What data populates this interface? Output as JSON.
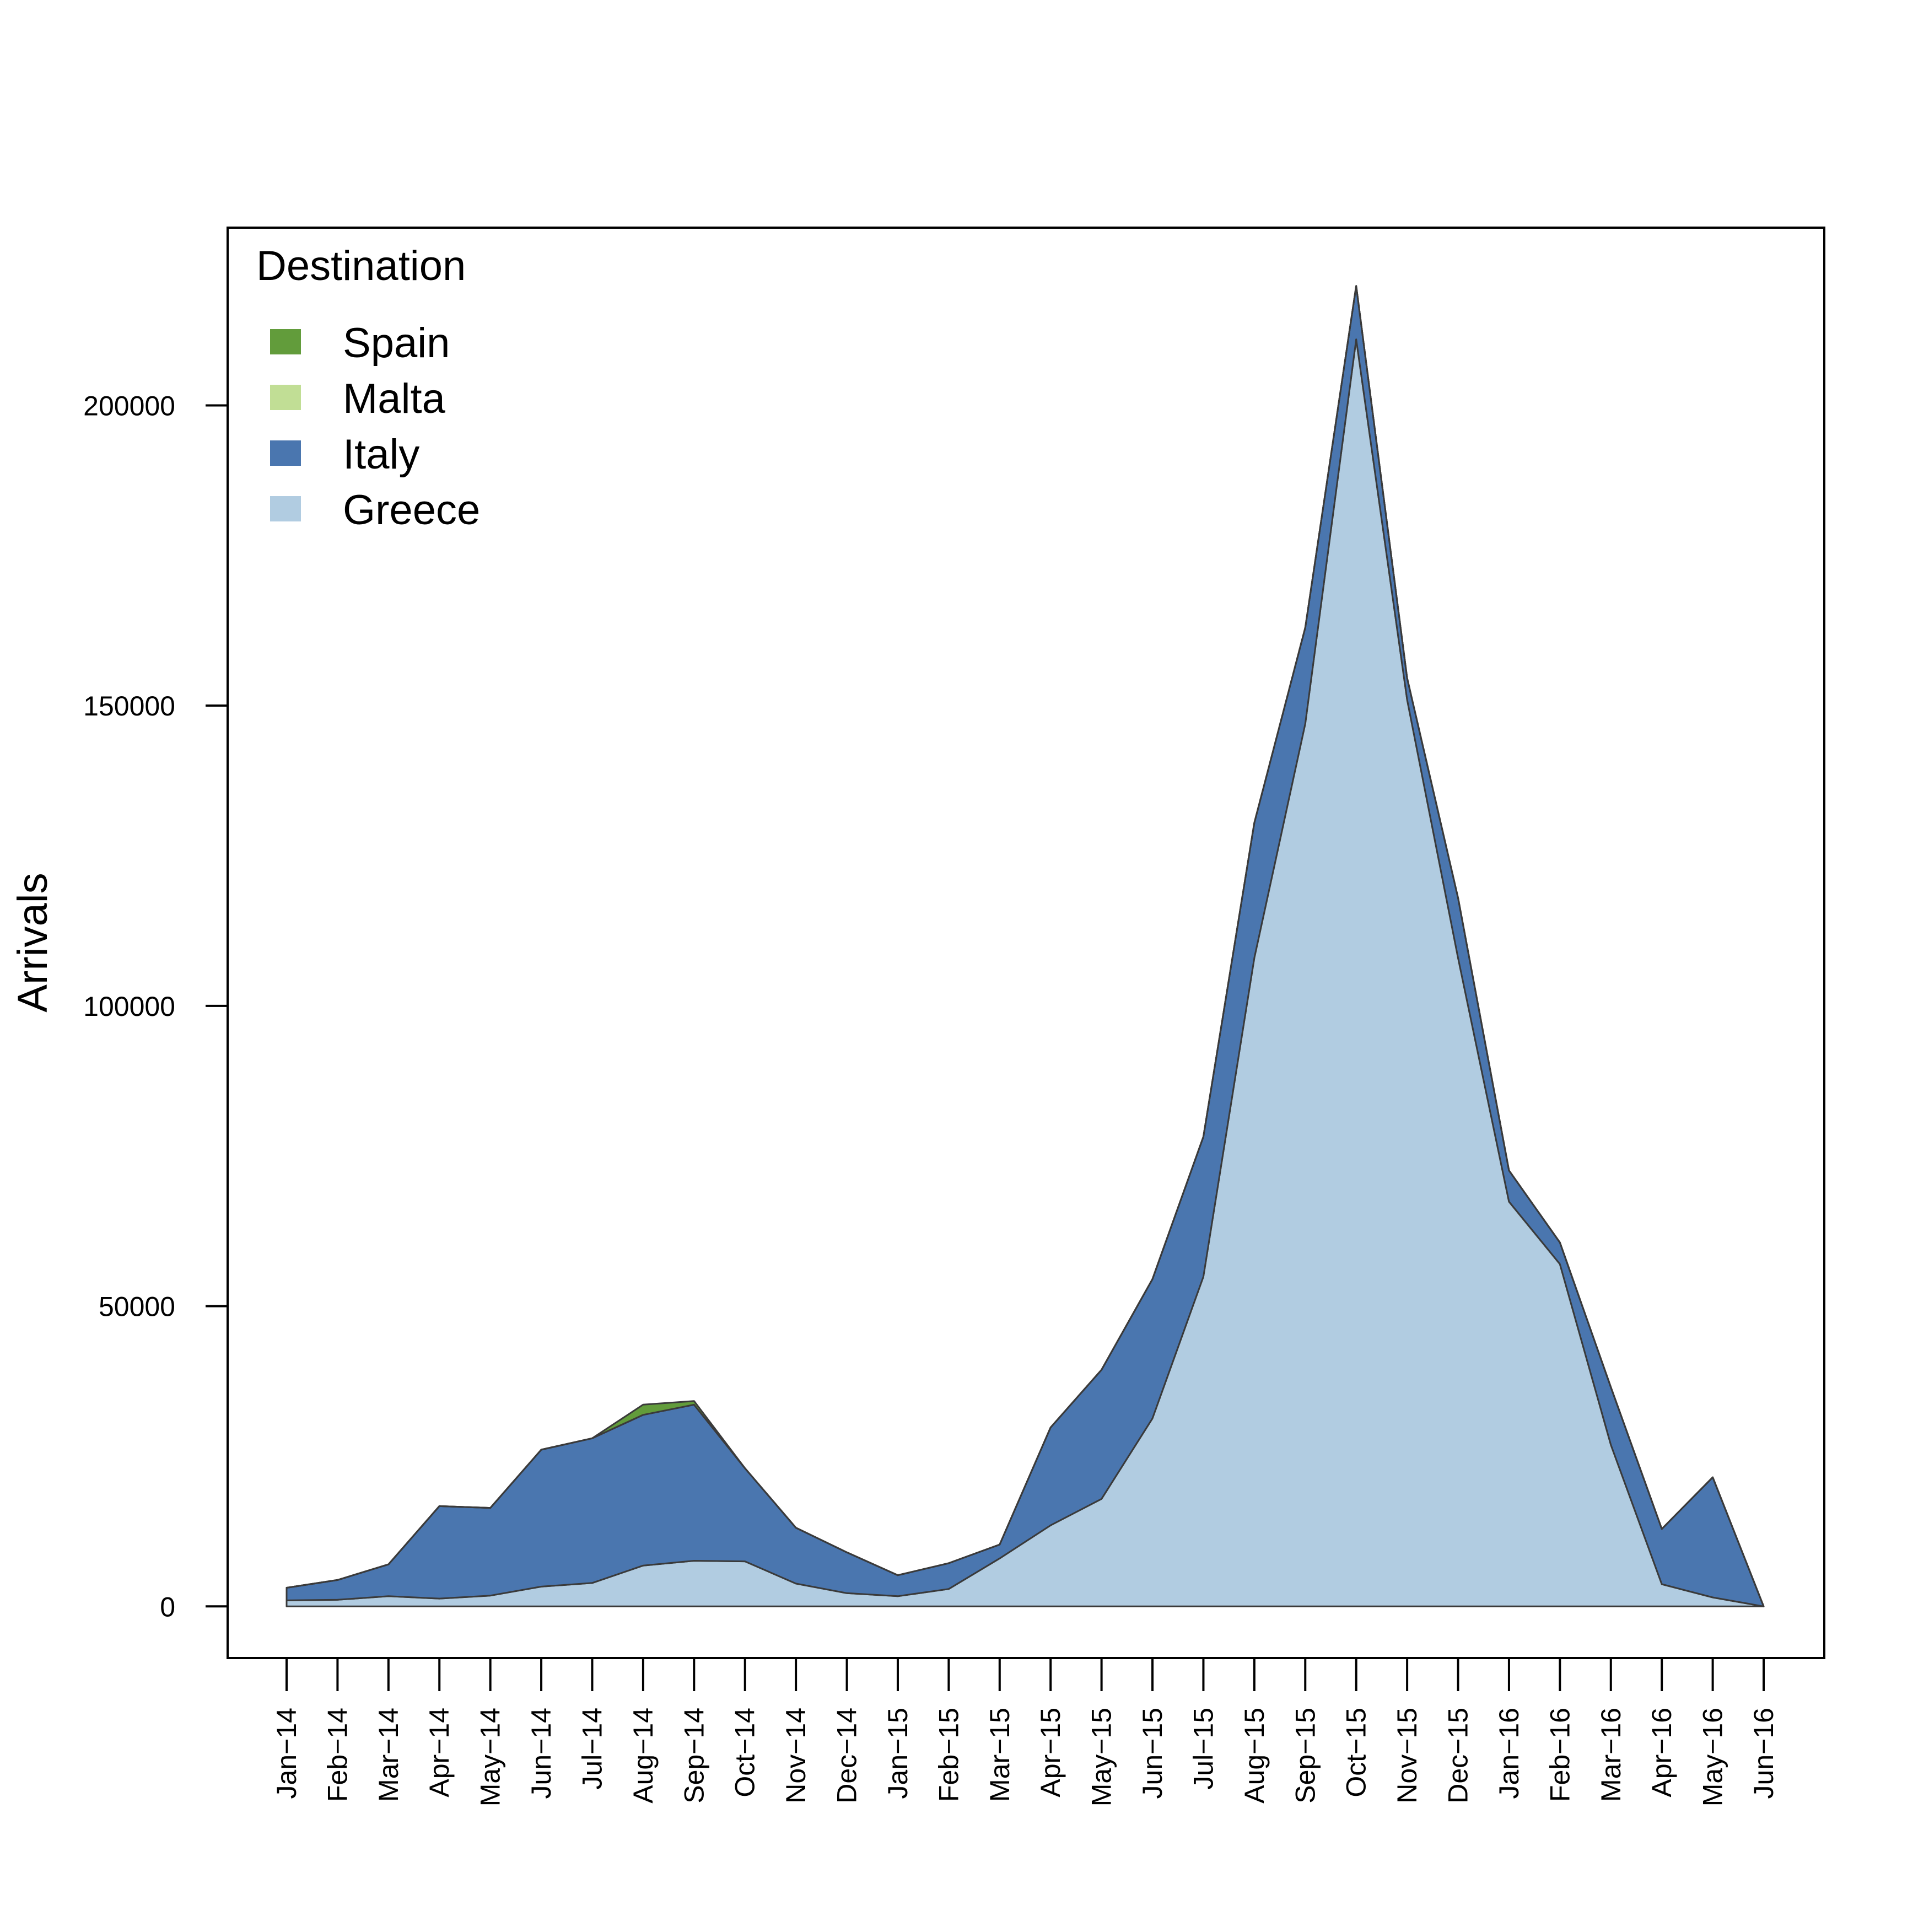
{
  "chart_data": {
    "type": "area",
    "stacked": true,
    "ylabel": "Arrivals",
    "xlabel": "",
    "ylim": [
      -8600,
      229600
    ],
    "yticks": [
      0,
      50000,
      100000,
      150000,
      200000
    ],
    "ytick_labels": [
      "0",
      "50000",
      "100000",
      "150000",
      "200000"
    ],
    "categories": [
      "Jan−14",
      "Feb−14",
      "Mar−14",
      "Apr−14",
      "May−14",
      "Jun−14",
      "Jul−14",
      "Aug−14",
      "Sep−14",
      "Oct−14",
      "Nov−14",
      "Dec−14",
      "Jan−15",
      "Feb−15",
      "Mar−15",
      "Apr−15",
      "May−15",
      "Jun−15",
      "Jul−15",
      "Aug−15",
      "Sep−15",
      "Oct−15",
      "Nov−15",
      "Dec−15",
      "Jan−16",
      "Feb−16",
      "Mar−16",
      "Apr−16",
      "May−16",
      "Jun−16"
    ],
    "legend_title": "Destination",
    "legend_position": "top-left",
    "legend": [
      {
        "name": "Spain",
        "color": "#629C3B"
      },
      {
        "name": "Malta",
        "color": "#C1DE95"
      },
      {
        "name": "Italy",
        "color": "#4A76AF"
      },
      {
        "name": "Greece",
        "color": "#B1CCE1"
      }
    ],
    "series": [
      {
        "name": "Greece",
        "color": "#B1CCE1",
        "values": [
          1000,
          1100,
          1700,
          1300,
          1800,
          3300,
          3900,
          6800,
          7600,
          7500,
          3800,
          2200,
          1700,
          2900,
          8000,
          13500,
          17900,
          31300,
          54900,
          108000,
          147000,
          211000,
          151000,
          108000,
          67400,
          57000,
          26900,
          3700,
          1500,
          0
        ]
      },
      {
        "name": "Italy",
        "color": "#4A76AF",
        "values": [
          2100,
          3300,
          5300,
          15400,
          14600,
          22800,
          24100,
          25100,
          26000,
          15500,
          9300,
          6800,
          3500,
          4300,
          2300,
          16300,
          21500,
          23200,
          23300,
          22500,
          16000,
          8900,
          3600,
          10000,
          5200,
          3600,
          9600,
          9200,
          20000,
          0
        ]
      },
      {
        "name": "Malta",
        "color": "#C1DE95",
        "values": [
          0,
          0,
          0,
          0,
          0,
          0,
          0,
          0,
          0,
          0,
          0,
          0,
          0,
          0,
          0,
          0,
          0,
          0,
          0,
          0,
          0,
          0,
          0,
          0,
          0,
          0,
          0,
          0,
          0,
          0
        ]
      },
      {
        "name": "Spain",
        "color": "#629C3B",
        "values": [
          0,
          0,
          0,
          0,
          0,
          0,
          0,
          1700,
          600,
          0,
          0,
          0,
          0,
          0,
          0,
          0,
          0,
          0,
          0,
          0,
          0,
          0,
          0,
          0,
          0,
          0,
          0,
          0,
          0,
          0
        ]
      }
    ]
  }
}
